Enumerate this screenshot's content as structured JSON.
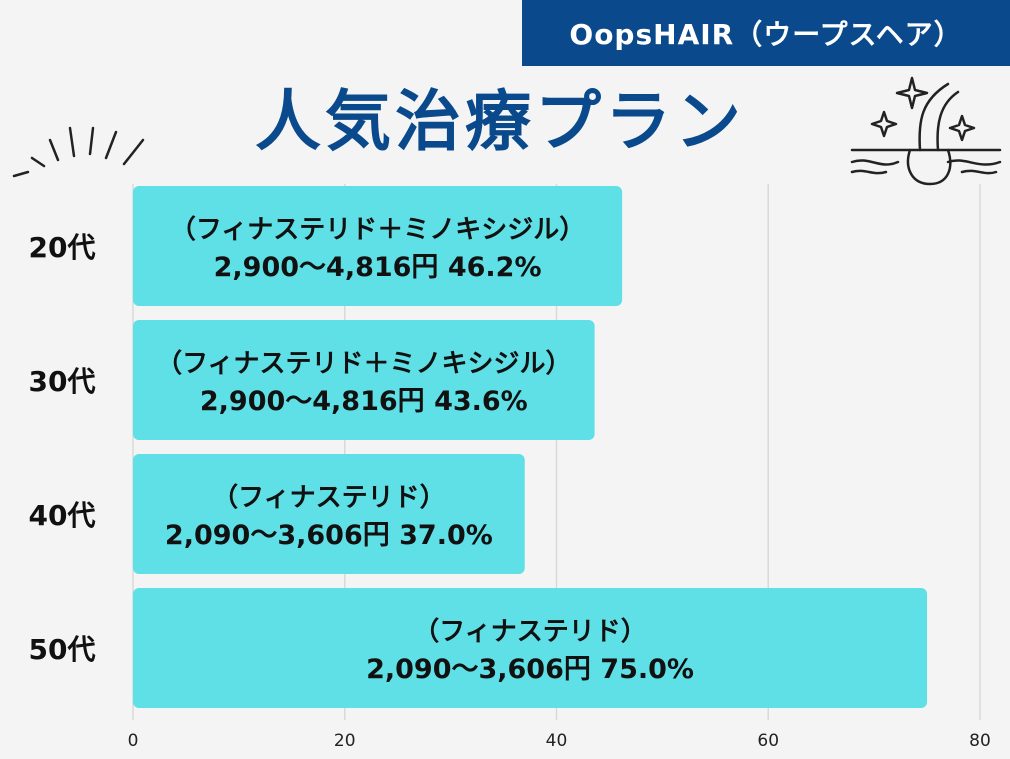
{
  "brand": {
    "label": "OopsHAIR（ウープスヘア）"
  },
  "chart_data": {
    "type": "bar",
    "orientation": "horizontal",
    "title": "人気治療プラン",
    "categories": [
      "20代",
      "30代",
      "40代",
      "50代"
    ],
    "values": [
      46.2,
      43.6,
      37.0,
      75.0
    ],
    "data_labels": [
      [
        "（フィナステリド＋ミノキシジル）",
        "2,900〜4,816円  46.2%"
      ],
      [
        "（フィナステリド＋ミノキシジル）",
        "2,900〜4,816円  43.6%"
      ],
      [
        "（フィナステリド）",
        "2,090〜3,606円  37.0%"
      ],
      [
        "（フィナステリド）",
        "2,090〜3,606円  75.0%"
      ]
    ],
    "xlim": [
      0,
      80
    ],
    "xticks": [
      0,
      20,
      40,
      60,
      80
    ],
    "grid": true,
    "legend": "none",
    "xlabel": "",
    "ylabel": "",
    "colors": {
      "bar": "#5fe0e6",
      "title": "#0a4a8c",
      "banner": "#0a4a8c",
      "grid": "#d9d9d9",
      "label_text": "#111111"
    }
  }
}
